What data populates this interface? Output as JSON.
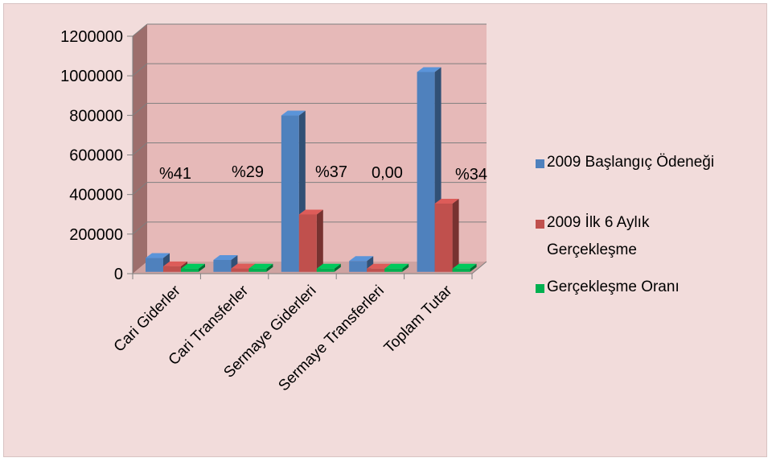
{
  "chart_data": {
    "type": "bar",
    "title": "",
    "xlabel": "",
    "ylabel": "",
    "ylim": [
      0,
      1200000
    ],
    "yticks": [
      0,
      200000,
      400000,
      600000,
      800000,
      1000000,
      1200000
    ],
    "grid": true,
    "legend_position": "right",
    "categories": [
      "Cari Giderler",
      "Cari Transferler",
      "Sermaye Giderleri",
      "Sermaye Transferleri",
      "Toplam Tutar"
    ],
    "series": [
      {
        "name": "2009 Başlangıç Ödeneği",
        "color": "#4f81bd",
        "values": [
          70000,
          60000,
          790000,
          55000,
          1010000
        ]
      },
      {
        "name": "2009 İlk 6 Aylık Gerçekleşme",
        "color": "#c0504d",
        "values": [
          28000,
          17000,
          290000,
          0,
          345000
        ]
      },
      {
        "name": "Gerçekleşme Oranı",
        "color": "#00b050",
        "values": [
          0.41,
          0.29,
          0.37,
          0.0,
          0.34
        ]
      }
    ],
    "annotations": [
      "%41",
      "%29",
      "%37",
      "0,00",
      "%34"
    ],
    "colors": {
      "background": "#f2dcdb",
      "plot_back": "#e6b9b8",
      "side_wall": "#9d6e6c",
      "grid": "#7f7f7f"
    }
  }
}
